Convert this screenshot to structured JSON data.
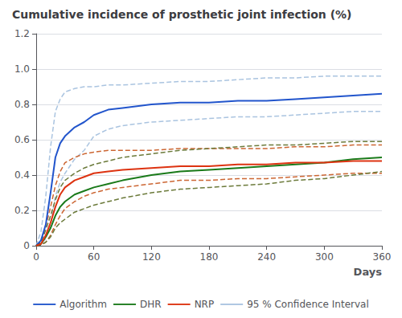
{
  "chart_data": {
    "type": "line",
    "title": "Cumulative incidence of prosthetic joint infection (%)",
    "xlabel": "Days",
    "x": [
      0,
      5,
      10,
      15,
      20,
      25,
      30,
      40,
      50,
      60,
      75,
      90,
      120,
      150,
      180,
      210,
      240,
      270,
      300,
      330,
      360
    ],
    "series": [
      {
        "name": "95 % Confidence Interval",
        "color": "#aac4e0",
        "line_style": "dashed",
        "marker": "none",
        "values": [
          0,
          0.08,
          0.28,
          0.56,
          0.76,
          0.83,
          0.87,
          0.89,
          0.9,
          0.9,
          0.91,
          0.91,
          0.92,
          0.93,
          0.93,
          0.94,
          0.95,
          0.95,
          0.96,
          0.96,
          0.96
        ]
      },
      {
        "name": "95 % Confidence Interval",
        "color": "#aac4e0",
        "line_style": "dashed",
        "marker": "none",
        "values": [
          0,
          0.01,
          0.04,
          0.12,
          0.28,
          0.36,
          0.41,
          0.49,
          0.54,
          0.62,
          0.66,
          0.68,
          0.7,
          0.71,
          0.72,
          0.73,
          0.73,
          0.74,
          0.75,
          0.76,
          0.76
        ]
      },
      {
        "name": "95 % Confidence Interval",
        "color": "#cc6633",
        "line_style": "dashed",
        "marker": "none",
        "values": [
          0,
          0.02,
          0.11,
          0.22,
          0.34,
          0.42,
          0.47,
          0.5,
          0.52,
          0.53,
          0.54,
          0.54,
          0.54,
          0.55,
          0.55,
          0.55,
          0.55,
          0.56,
          0.56,
          0.57,
          0.57
        ]
      },
      {
        "name": "95 % Confidence Interval",
        "color": "#cc6633",
        "line_style": "dashed",
        "marker": "none",
        "values": [
          0,
          0.005,
          0.02,
          0.06,
          0.12,
          0.17,
          0.21,
          0.25,
          0.28,
          0.3,
          0.32,
          0.33,
          0.35,
          0.37,
          0.37,
          0.38,
          0.38,
          0.39,
          0.4,
          0.41,
          0.41
        ]
      },
      {
        "name": "95 % Confidence Interval",
        "color": "#6b7a3a",
        "line_style": "dashed",
        "marker": "none",
        "values": [
          0,
          0.02,
          0.09,
          0.17,
          0.26,
          0.33,
          0.37,
          0.41,
          0.44,
          0.46,
          0.48,
          0.5,
          0.52,
          0.54,
          0.55,
          0.56,
          0.57,
          0.57,
          0.58,
          0.59,
          0.59
        ]
      },
      {
        "name": "95 % Confidence Interval",
        "color": "#6b7a3a",
        "line_style": "dashed",
        "marker": "none",
        "values": [
          0,
          0.005,
          0.02,
          0.05,
          0.1,
          0.13,
          0.15,
          0.19,
          0.21,
          0.23,
          0.25,
          0.27,
          0.3,
          0.32,
          0.33,
          0.34,
          0.35,
          0.37,
          0.38,
          0.4,
          0.42
        ]
      },
      {
        "name": "Algorithm",
        "color": "#2255cc",
        "line_style": "solid",
        "marker": "none",
        "values": [
          0,
          0.03,
          0.12,
          0.3,
          0.5,
          0.58,
          0.62,
          0.67,
          0.7,
          0.74,
          0.77,
          0.78,
          0.8,
          0.81,
          0.81,
          0.82,
          0.82,
          0.83,
          0.84,
          0.85,
          0.86
        ]
      },
      {
        "name": "DHR",
        "color": "#1a7a1a",
        "line_style": "solid",
        "marker": "none",
        "values": [
          0,
          0.01,
          0.05,
          0.1,
          0.17,
          0.22,
          0.25,
          0.29,
          0.31,
          0.33,
          0.35,
          0.37,
          0.4,
          0.42,
          0.43,
          0.44,
          0.45,
          0.46,
          0.47,
          0.49,
          0.5
        ]
      },
      {
        "name": "NRP",
        "color": "#dd3311",
        "line_style": "solid",
        "marker": "none",
        "values": [
          0,
          0.01,
          0.06,
          0.13,
          0.22,
          0.29,
          0.33,
          0.37,
          0.39,
          0.41,
          0.42,
          0.43,
          0.44,
          0.45,
          0.45,
          0.46,
          0.46,
          0.47,
          0.47,
          0.48,
          0.48
        ]
      }
    ],
    "xlim": [
      0,
      360
    ],
    "ylim": [
      0,
      1.2
    ],
    "xticks": [
      0,
      60,
      120,
      180,
      240,
      300,
      360
    ],
    "yticks": [
      0,
      0.2,
      0.4,
      0.6,
      0.8,
      {
        "value": 1.0,
        "label": "1.0"
      },
      1.2
    ],
    "grid": true,
    "legend": "bottom"
  }
}
